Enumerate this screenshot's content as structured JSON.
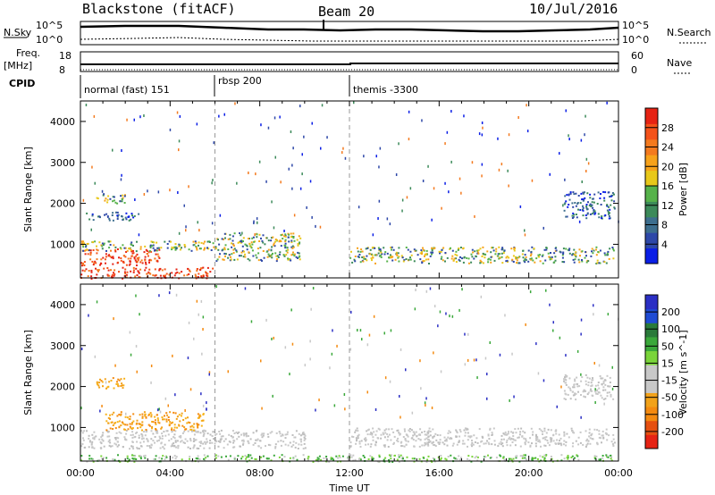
{
  "header": {
    "station": "Blackstone (fitACF)",
    "beam": "Beam 20",
    "date": "10/Jul/2016"
  },
  "top_panels": {
    "nsky_label": "N.Sky",
    "nsearch_label": "N.Search",
    "freq_label_1": "Freq.",
    "freq_label_2": "[MHz]",
    "nave_label": "Nave",
    "cpid_label": "CPID",
    "noise_ticks": [
      "10^5",
      "10^0"
    ],
    "freq_ticks": [
      "18",
      "8"
    ],
    "nave_ticks": [
      "60",
      "0"
    ],
    "cpid_segments": [
      {
        "name": "normal (fast) 151",
        "start_hour": 0,
        "end_hour": 6
      },
      {
        "name": "rbsp 200",
        "start_hour": 6,
        "end_hour": 12
      },
      {
        "name": "themis -3300",
        "start_hour": 12,
        "end_hour": 24
      }
    ]
  },
  "chart_data": [
    {
      "type": "heatmap",
      "title": "Power",
      "xlabel": "Time UT",
      "ylabel": "Slant Range [km]",
      "colorbar_label": "Power [dB]",
      "x_ticks": [
        "00:00",
        "04:00",
        "08:00",
        "12:00",
        "16:00",
        "20:00",
        "00:00"
      ],
      "xlim_hours": [
        0,
        24
      ],
      "ylim_km": [
        180,
        4500
      ],
      "y_ticks": [
        1000,
        2000,
        3000,
        4000
      ],
      "colorbar_ticks": [
        4,
        8,
        12,
        16,
        20,
        24,
        28
      ],
      "colorbar_colors": [
        "#0a1ee6",
        "#2e48a8",
        "#3d6e8e",
        "#3c8a5a",
        "#56b24a",
        "#e8c81a",
        "#f7a21a",
        "#f47a1e",
        "#f4521a",
        "#e62314"
      ],
      "bands": [
        {
          "t_start": 0.0,
          "t_end": 5.9,
          "r_start": 180,
          "r_end": 450,
          "level": "high"
        },
        {
          "t_start": 0.0,
          "t_end": 3.5,
          "r_start": 500,
          "r_end": 900,
          "level": "high"
        },
        {
          "t_start": 0.0,
          "t_end": 6.0,
          "r_start": 850,
          "r_end": 1100,
          "level": "medium"
        },
        {
          "t_start": 0.2,
          "t_end": 2.6,
          "r_start": 1600,
          "r_end": 1800,
          "level": "low"
        },
        {
          "t_start": 0.7,
          "t_end": 2.0,
          "r_start": 2000,
          "r_end": 2250,
          "level": "medium"
        },
        {
          "t_start": 6.0,
          "t_end": 9.8,
          "r_start": 600,
          "r_end": 1300,
          "level": "medium"
        },
        {
          "t_start": 12.0,
          "t_end": 23.8,
          "r_start": 550,
          "r_end": 950,
          "level": "medium"
        },
        {
          "t_start": 21.5,
          "t_end": 23.8,
          "r_start": 1650,
          "r_end": 2300,
          "level": "low"
        }
      ],
      "dashed_lines_hours": [
        6,
        12
      ]
    },
    {
      "type": "heatmap",
      "title": "Velocity",
      "xlabel": "Time UT",
      "ylabel": "Slant Range [km]",
      "colorbar_label": "Velocity [m s^-1]",
      "x_ticks": [
        "00:00",
        "04:00",
        "08:00",
        "12:00",
        "16:00",
        "20:00",
        "00:00"
      ],
      "xlim_hours": [
        0,
        24
      ],
      "ylim_km": [
        180,
        4500
      ],
      "y_ticks": [
        1000,
        2000,
        3000,
        4000
      ],
      "colorbar_ticks": [
        200,
        100,
        50,
        15,
        -15,
        -50,
        -100,
        -200
      ],
      "colorbar_colors": [
        "#2b2fc4",
        "#1f4bd4",
        "#2a7a3a",
        "#3aa83a",
        "#7ad43a",
        "#c8c8c8",
        "#c8c8c8",
        "#f2a21a",
        "#f48a10",
        "#e65010",
        "#e62314"
      ],
      "bands": [
        {
          "t_start": 0.0,
          "t_end": 10.0,
          "r_start": 500,
          "r_end": 950,
          "level": "gray"
        },
        {
          "t_start": 1.0,
          "t_end": 5.5,
          "r_start": 950,
          "r_end": 1400,
          "level": "orange"
        },
        {
          "t_start": 0.7,
          "t_end": 2.0,
          "r_start": 1950,
          "r_end": 2250,
          "level": "orange"
        },
        {
          "t_start": 12.0,
          "t_end": 23.8,
          "r_start": 550,
          "r_end": 1000,
          "level": "gray"
        },
        {
          "t_start": 0.0,
          "t_end": 23.8,
          "r_start": 180,
          "r_end": 350,
          "level": "green"
        },
        {
          "t_start": 21.5,
          "t_end": 23.8,
          "r_start": 1700,
          "r_end": 2300,
          "level": "gray"
        }
      ],
      "dashed_lines_hours": [
        6,
        12
      ]
    }
  ]
}
